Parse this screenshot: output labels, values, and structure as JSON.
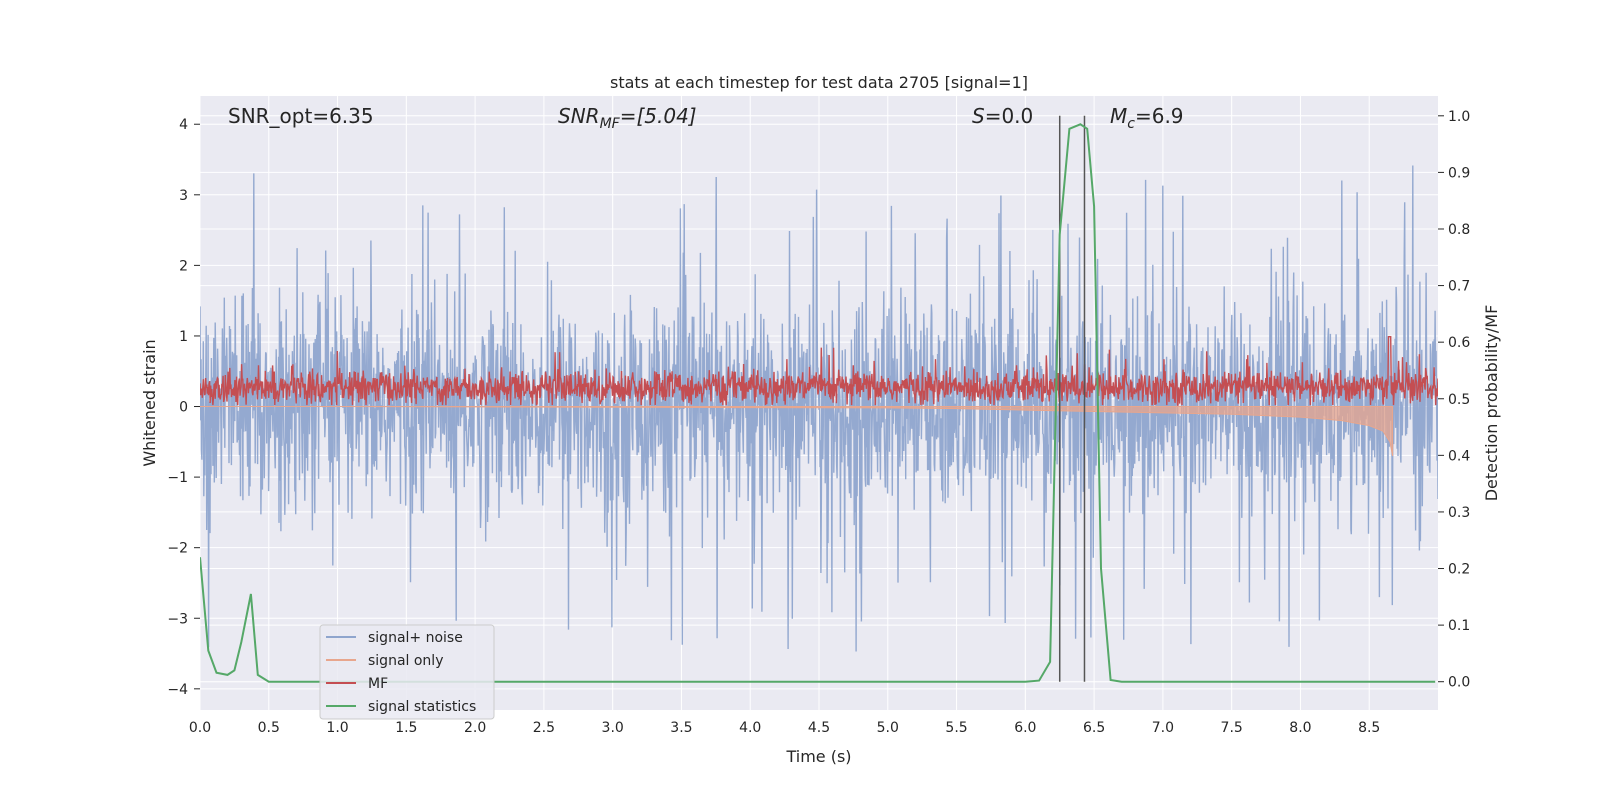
{
  "chart_data": {
    "type": "line",
    "title": "stats at each timestep for test data 2705 [signal=1]",
    "xlabel": "Time (s)",
    "ylabel_left": "Whitened strain",
    "ylabel_right": "Detection probability/MF",
    "xlim": [
      0.0,
      9.0
    ],
    "ylim_left": [
      -4.3,
      4.4
    ],
    "ylim_right": [
      -0.05,
      1.035
    ],
    "x_ticks": [
      "0.0",
      "0.5",
      "1.0",
      "1.5",
      "2.0",
      "2.5",
      "3.0",
      "3.5",
      "4.0",
      "4.5",
      "5.0",
      "5.5",
      "6.0",
      "6.5",
      "7.0",
      "7.5",
      "8.0",
      "8.5"
    ],
    "y_ticks_left": [
      "4",
      "3",
      "2",
      "1",
      "0",
      "−1",
      "−2",
      "−3",
      "−4"
    ],
    "y_ticks_right": [
      "1.0",
      "0.9",
      "0.8",
      "0.7",
      "0.6",
      "0.5",
      "0.4",
      "0.3",
      "0.2",
      "0.1",
      "0.0"
    ],
    "grid": true,
    "annotations": {
      "snr_opt": "SNR_opt=6.35",
      "snr_mf_main": "SNR",
      "snr_mf_sub": "MF",
      "snr_mf_tail": "=[5.04]",
      "s_main": "S",
      "s_tail": "=0.0",
      "mc_main": "M",
      "mc_sub": "c",
      "mc_tail": "=6.9"
    },
    "vlines_x": [
      6.25,
      6.43
    ],
    "legend": {
      "placement": "lower-left",
      "entries": [
        "signal+ noise",
        "signal only",
        "MF",
        "signal statistics"
      ]
    },
    "colors": {
      "signal_noise": "#8fa5cd",
      "signal_only": "#e8a68d",
      "mf": "#c44e52",
      "signal_statistics": "#55a868",
      "vline": "#555555",
      "plot_bg": "#eaeaf2",
      "grid": "#ffffff"
    },
    "series": [
      {
        "name": "signal statistics",
        "axis": "right",
        "x": [
          0.0,
          0.06,
          0.12,
          0.2,
          0.25,
          0.3,
          0.37,
          0.42,
          0.5,
          1.0,
          2.0,
          3.0,
          4.0,
          5.0,
          5.5,
          6.0,
          6.1,
          6.18,
          6.25,
          6.32,
          6.4,
          6.45,
          6.5,
          6.55,
          6.62,
          6.7,
          7.0,
          8.0,
          8.98
        ],
        "values": [
          0.22,
          0.055,
          0.016,
          0.012,
          0.02,
          0.07,
          0.155,
          0.012,
          0.0,
          0.0,
          0.0,
          0.0,
          0.0,
          0.0,
          0.0,
          0.0,
          0.002,
          0.035,
          0.79,
          0.977,
          0.985,
          0.977,
          0.84,
          0.2,
          0.003,
          0.0,
          0.0,
          0.0,
          0.0
        ]
      },
      {
        "name": "signal only",
        "axis": "left",
        "x": [
          0.0,
          1.0,
          2.0,
          3.0,
          4.0,
          5.0,
          5.5,
          6.0,
          6.5,
          7.0,
          7.5,
          8.0,
          8.3,
          8.5,
          8.6,
          8.65,
          8.67
        ],
        "values": [
          0.0,
          0.0,
          -0.005,
          -0.01,
          -0.015,
          -0.02,
          -0.03,
          -0.05,
          -0.07,
          -0.09,
          -0.11,
          -0.15,
          -0.2,
          -0.27,
          -0.35,
          -0.5,
          -0.7
        ]
      }
    ],
    "signal_noise_envelope": {
      "name": "signal+ noise",
      "axis": "left",
      "typical_range": [
        -1.5,
        1.5
      ],
      "spike_max": 4.0,
      "spike_min": -4.0
    },
    "mf_envelope": {
      "name": "MF",
      "axis": "left",
      "typical_range": [
        0.05,
        0.5
      ],
      "spike_max": 0.99
    }
  }
}
